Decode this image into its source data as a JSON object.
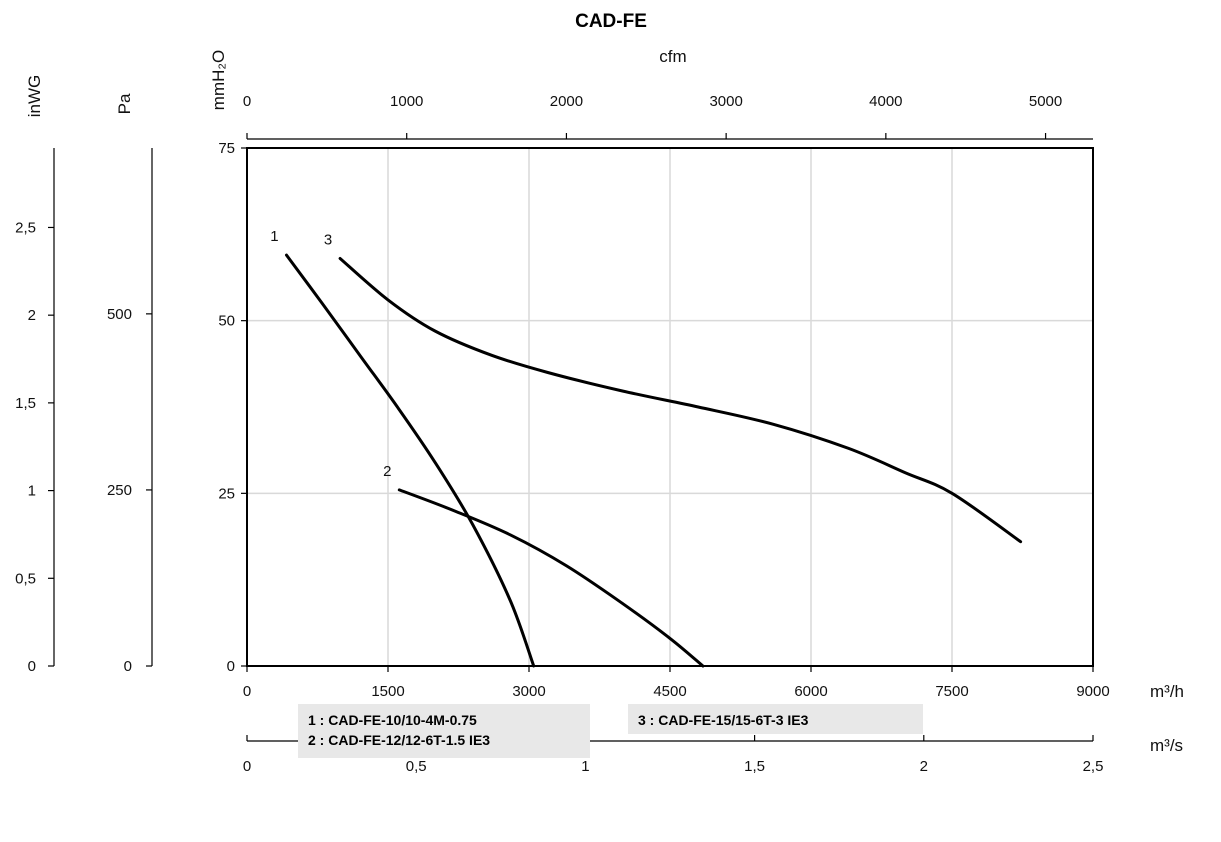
{
  "chart_data": {
    "type": "line",
    "title": "CAD-FE",
    "x_axis": {
      "label": "m³/h",
      "range": [
        0,
        9000
      ],
      "ticks": [
        0,
        1500,
        3000,
        4500,
        6000,
        7500,
        9000
      ],
      "tick_labels": [
        "0",
        "1500",
        "3000",
        "4500",
        "6000",
        "7500",
        "9000"
      ]
    },
    "x_secondary_axis": {
      "label": "m³/s",
      "range": [
        0,
        2.5
      ],
      "ticks": [
        0,
        0.5,
        1,
        1.5,
        2,
        2.5
      ],
      "tick_labels": [
        "0",
        "0,5",
        "1",
        "1,5",
        "2",
        "2,5"
      ]
    },
    "x_top_axis": {
      "label": "cfm",
      "range": [
        0,
        5297
      ],
      "ticks": [
        0,
        1000,
        2000,
        3000,
        4000,
        5000
      ],
      "tick_labels": [
        "0",
        "1000",
        "2000",
        "3000",
        "4000",
        "5000"
      ]
    },
    "y_axis": {
      "label": "mmH₂O",
      "range": [
        0,
        75
      ],
      "ticks": [
        0,
        25,
        50,
        75
      ],
      "tick_labels": [
        "0",
        "25",
        "50",
        "75"
      ]
    },
    "y_pa_axis": {
      "label": "Pa",
      "range": [
        0,
        735.5
      ],
      "ticks": [
        0,
        250,
        500
      ],
      "tick_labels": [
        "0",
        "250",
        "500"
      ]
    },
    "y_inwg_axis": {
      "label": "inWG",
      "range": [
        0,
        2.953
      ],
      "ticks": [
        0,
        0.5,
        1,
        1.5,
        2,
        2.5
      ],
      "tick_labels": [
        "0",
        "0,5",
        "1",
        "1,5",
        "2",
        "2,5"
      ]
    },
    "grid": true,
    "series": [
      {
        "name": "1",
        "x": [
          420,
          800,
          1200,
          1600,
          2000,
          2400,
          2800,
          3050
        ],
        "y": [
          59.5,
          52.5,
          45.0,
          37.5,
          29.5,
          20.5,
          9.5,
          0
        ]
      },
      {
        "name": "2",
        "x": [
          1620,
          2200,
          2800,
          3400,
          4000,
          4500,
          4850
        ],
        "y": [
          25.5,
          22.5,
          19.0,
          14.5,
          9.0,
          4.0,
          0
        ]
      },
      {
        "name": "3",
        "x": [
          990,
          1500,
          2000,
          2600,
          3200,
          4000,
          4800,
          5600,
          6400,
          7000,
          7500,
          8230
        ],
        "y": [
          59.0,
          53.0,
          48.5,
          45.0,
          42.5,
          39.8,
          37.5,
          35.0,
          31.5,
          28.0,
          25.0,
          18.0
        ]
      }
    ],
    "legend": {
      "placement": "bottom",
      "entries": [
        "1 : CAD-FE-10/10-4M-0.75",
        "2 : CAD-FE-12/12-6T-1.5 IE3",
        "3 : CAD-FE-15/15-6T-3 IE3"
      ]
    }
  }
}
